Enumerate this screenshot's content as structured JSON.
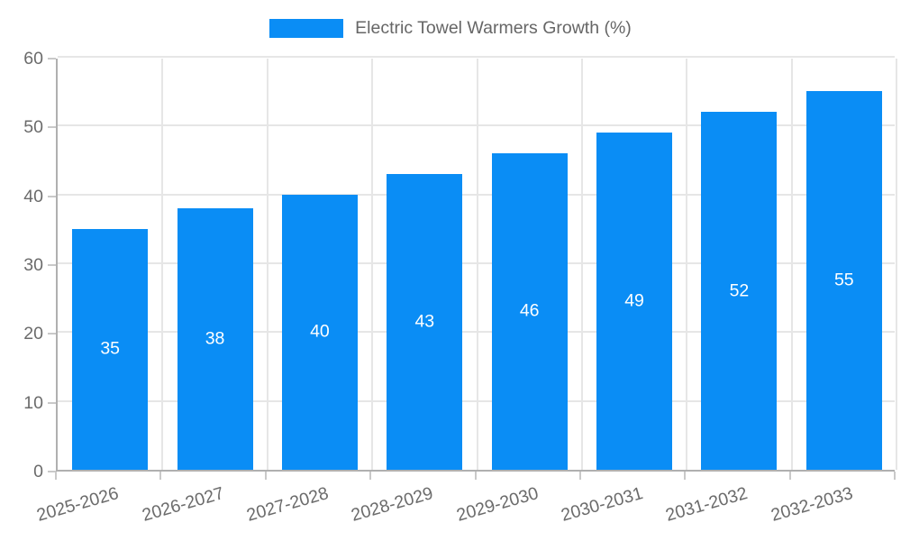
{
  "legend": {
    "label": "Electric Towel Warmers Growth (%)"
  },
  "chart_data": {
    "type": "bar",
    "title": "Electric Towel Warmers Growth (%)",
    "categories": [
      "2025-2026",
      "2026-2027",
      "2027-2028",
      "2028-2029",
      "2029-2030",
      "2030-2031",
      "2031-2032",
      "2032-2033"
    ],
    "values": [
      35,
      38,
      40,
      43,
      46,
      49,
      52,
      55
    ],
    "series_name": "Electric Towel Warmers Growth (%)",
    "xlabel": "",
    "ylabel": "",
    "ylim": [
      0,
      60
    ],
    "yticks": [
      0,
      10,
      20,
      30,
      40,
      50,
      60
    ],
    "grid": true,
    "legend_position": "top",
    "bar_color": "#0a8df5",
    "value_label_color": "#ffffff",
    "axis_text_color": "#6b6b6b",
    "grid_color": "#e6e6e6",
    "axis_line_color": "#b0b0b0"
  }
}
